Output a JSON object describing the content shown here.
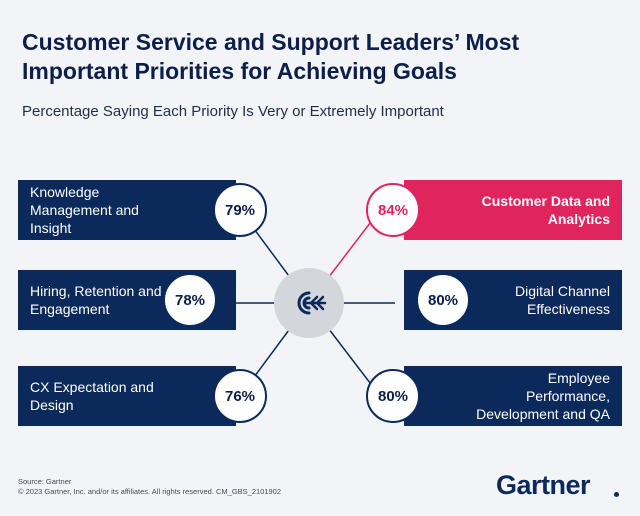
{
  "header": {
    "title": "Customer Service and Support Leaders’ Most Important Priorities for Achieving Goals",
    "subtitle": "Percentage Saying Each Priority Is Very or Extremely Important"
  },
  "priorities": [
    {
      "label": "Knowledge Management and Insight",
      "value": "79%",
      "side": "left",
      "highlight": false
    },
    {
      "label": "Hiring, Retention and Engagement",
      "value": "78%",
      "side": "left",
      "highlight": false
    },
    {
      "label": "CX Expectation and Design",
      "value": "76%",
      "side": "left",
      "highlight": false
    },
    {
      "label": "Customer Data and Analytics",
      "value": "84%",
      "side": "right",
      "highlight": true
    },
    {
      "label": "Digital Channel Effectiveness",
      "value": "80%",
      "side": "right",
      "highlight": false
    },
    {
      "label": "Employee Performance, Development and QA",
      "value": "80%",
      "side": "right",
      "highlight": false
    }
  ],
  "hub": {
    "icon": "target-arrow-icon"
  },
  "footer": {
    "source": "Source: Gartner",
    "copyright": "© 2023 Gartner, Inc. and/or its affiliates. All rights reserved. CM_GBS_2101902",
    "logo": "Gartner"
  },
  "colors": {
    "navy": "#0b2a5b",
    "accent": "#e0245e",
    "hub": "#d3d6db",
    "background": "#f2f4f8"
  }
}
